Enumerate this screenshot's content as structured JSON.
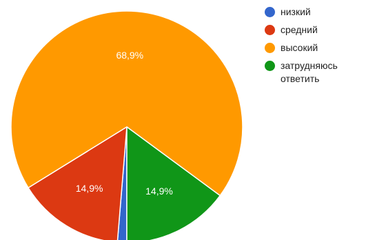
{
  "chart_data": {
    "type": "pie",
    "series": [
      {
        "name": "низкий",
        "value": 1.3,
        "label": "",
        "color": "#3366cc"
      },
      {
        "name": "средний",
        "value": 14.9,
        "label": "14,9%",
        "color": "#dc3912"
      },
      {
        "name": "высокий",
        "value": 68.9,
        "label": "68,9%",
        "color": "#ff9900"
      },
      {
        "name": "затрудняюсь ответить",
        "value": 14.9,
        "label": "14,9%",
        "color": "#109618"
      }
    ],
    "legend_position": "right",
    "start_angle_deg": 90,
    "direction": "clockwise"
  },
  "legend": {
    "items": [
      {
        "label": "низкий",
        "color": "#3366cc"
      },
      {
        "label": "средний",
        "color": "#dc3912"
      },
      {
        "label": "высокий",
        "color": "#ff9900"
      },
      {
        "label": "затрудняюсь ответить",
        "color": "#109618"
      }
    ]
  }
}
